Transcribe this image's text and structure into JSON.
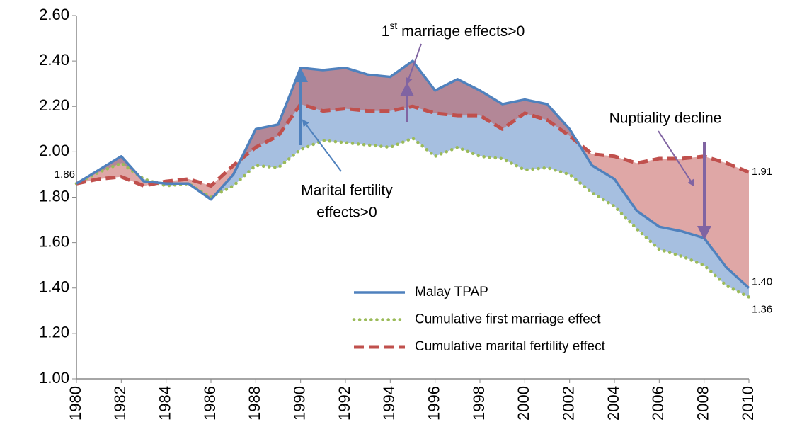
{
  "chart_data": {
    "type": "line",
    "x": [
      1980,
      1981,
      1982,
      1983,
      1984,
      1985,
      1986,
      1987,
      1988,
      1989,
      1990,
      1991,
      1992,
      1993,
      1994,
      1995,
      1996,
      1997,
      1998,
      1999,
      2000,
      2001,
      2002,
      2003,
      2004,
      2005,
      2006,
      2007,
      2008,
      2009,
      2010
    ],
    "xlim": [
      1980,
      2010
    ],
    "xticks": [
      1980,
      1982,
      1984,
      1986,
      1988,
      1990,
      1992,
      1994,
      1996,
      1998,
      2000,
      2002,
      2004,
      2006,
      2008,
      2010
    ],
    "ylim": [
      1.0,
      2.6
    ],
    "yticks": [
      {
        "value": 1.0,
        "label": "1.00"
      },
      {
        "value": 1.2,
        "label": "1.20"
      },
      {
        "value": 1.4,
        "label": "1.40"
      },
      {
        "value": 1.6,
        "label": "1.60"
      },
      {
        "value": 1.8,
        "label": "1.80"
      },
      {
        "value": 2.0,
        "label": "2.00"
      },
      {
        "value": 2.2,
        "label": "2.20"
      },
      {
        "value": 2.4,
        "label": "2.40"
      },
      {
        "value": 2.6,
        "label": "2.60"
      }
    ],
    "legend": "lower center",
    "series": [
      {
        "name": "Malay TPAP",
        "color": "#4f81bd",
        "style": "solid",
        "values": [
          1.86,
          1.92,
          1.98,
          1.87,
          1.86,
          1.86,
          1.79,
          1.9,
          2.1,
          2.12,
          2.37,
          2.36,
          2.37,
          2.34,
          2.33,
          2.4,
          2.27,
          2.32,
          2.27,
          2.21,
          2.23,
          2.21,
          2.1,
          1.94,
          1.88,
          1.74,
          1.67,
          1.65,
          1.62,
          1.49,
          1.4
        ],
        "value_labels": [
          "1.86",
          null,
          null,
          null,
          null,
          null,
          null,
          null,
          null,
          null,
          null,
          null,
          null,
          null,
          null,
          null,
          null,
          null,
          null,
          null,
          null,
          null,
          null,
          null,
          null,
          null,
          null,
          null,
          null,
          null,
          "1.40"
        ]
      },
      {
        "name": "Cumulative first marriage effect",
        "color": "#9bbb59",
        "style": "dotted",
        "values": [
          1.86,
          1.91,
          1.95,
          1.88,
          1.85,
          1.86,
          1.8,
          1.85,
          1.94,
          1.93,
          2.01,
          2.05,
          2.04,
          2.03,
          2.02,
          2.06,
          1.98,
          2.02,
          1.98,
          1.97,
          1.92,
          1.93,
          1.9,
          1.82,
          1.76,
          1.66,
          1.57,
          1.54,
          1.5,
          1.41,
          1.36
        ],
        "value_labels": [
          null,
          null,
          null,
          null,
          null,
          null,
          null,
          null,
          null,
          null,
          null,
          null,
          null,
          null,
          null,
          null,
          null,
          null,
          null,
          null,
          null,
          null,
          null,
          null,
          null,
          null,
          null,
          null,
          null,
          null,
          "1.36"
        ]
      },
      {
        "name": "Cumulative marital fertility effect",
        "color": "#c0504d",
        "style": "dashed",
        "values": [
          1.86,
          1.88,
          1.89,
          1.85,
          1.87,
          1.88,
          1.85,
          1.94,
          2.02,
          2.07,
          2.21,
          2.18,
          2.19,
          2.18,
          2.18,
          2.2,
          2.17,
          2.16,
          2.16,
          2.1,
          2.17,
          2.14,
          2.07,
          1.99,
          1.98,
          1.95,
          1.97,
          1.97,
          1.98,
          1.95,
          1.91
        ],
        "value_labels": [
          null,
          null,
          null,
          null,
          null,
          null,
          null,
          null,
          null,
          null,
          null,
          null,
          null,
          null,
          null,
          null,
          null,
          null,
          null,
          null,
          null,
          null,
          null,
          null,
          null,
          null,
          null,
          null,
          null,
          null,
          "1.91"
        ]
      }
    ],
    "annotations": [
      {
        "parts": [
          "1",
          "st",
          " marriage effects>0"
        ]
      },
      {
        "lines": [
          "Marital fertility",
          "effects>0"
        ]
      },
      {
        "lines": [
          "Nuptiality decline"
        ]
      }
    ]
  }
}
